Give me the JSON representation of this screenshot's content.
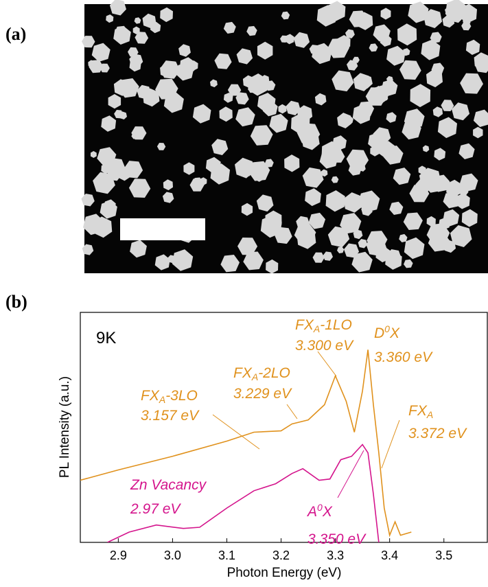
{
  "panel_labels": [
    "(a)",
    "(b)"
  ],
  "chart_data": {
    "type": "line",
    "inset_label": "9K",
    "xlabel": "Photon Energy (eV)",
    "ylabel": "PL Intensity (a.u.)",
    "log_y": true,
    "xlim": [
      2.83,
      3.58
    ],
    "xticks": [
      2.9,
      {
        "value": 3,
        "label": "3.0"
      },
      3.1,
      3.2,
      3.3,
      3.4,
      3.5
    ],
    "ylim": [
      0.73,
      47
    ],
    "series": [
      {
        "color": "#e0911c",
        "x": [
          2.83,
          2.9,
          3.0,
          3.1,
          3.15,
          3.2,
          3.22,
          3.25,
          3.28,
          3.3,
          3.32,
          3.335,
          3.35,
          3.36,
          3.37,
          3.38,
          3.39,
          3.4,
          3.41,
          3.42,
          3.44
        ],
        "values": [
          2.25,
          2.71,
          3.47,
          4.57,
          5.37,
          5.5,
          6.23,
          6.71,
          8.83,
          14.9,
          9.4,
          5.37,
          11.3,
          23.9,
          8.83,
          3.7,
          1.36,
          0.83,
          1.06,
          0.83,
          0.88
        ]
      },
      {
        "color": "#d4148c",
        "x": [
          2.88,
          2.92,
          2.97,
          3.02,
          3.05,
          3.1,
          3.15,
          3.19,
          3.22,
          3.24,
          3.27,
          3.29,
          3.31,
          3.33,
          3.35,
          3.36,
          3.37,
          3.38
        ],
        "values": [
          0.73,
          0.88,
          1.0,
          0.94,
          0.96,
          1.36,
          1.86,
          2.11,
          2.54,
          2.77,
          2.25,
          2.3,
          3.26,
          3.47,
          4.29,
          3.7,
          1.75,
          0.73
        ]
      }
    ],
    "annotations": [
      {
        "parts": [
          "FX",
          "A",
          "-3LO"
        ],
        "energy": "3.157 eV"
      },
      {
        "parts": [
          "FX",
          "A",
          "-2LO"
        ],
        "energy": "3.229 eV"
      },
      {
        "parts": [
          "FX",
          "A",
          "-1LO"
        ],
        "energy": "3.300 eV"
      },
      {
        "parts": [
          "D",
          "0",
          "X"
        ],
        "energy": "3.360 eV"
      },
      {
        "parts": [
          "FX",
          "A"
        ],
        "energy": "3.372 eV"
      },
      {
        "parts": [
          "A",
          "0",
          "X"
        ],
        "energy": "3.350 eV"
      },
      {
        "parts": [
          "Zn Vacancy"
        ],
        "energy": "2.97 eV"
      }
    ]
  }
}
